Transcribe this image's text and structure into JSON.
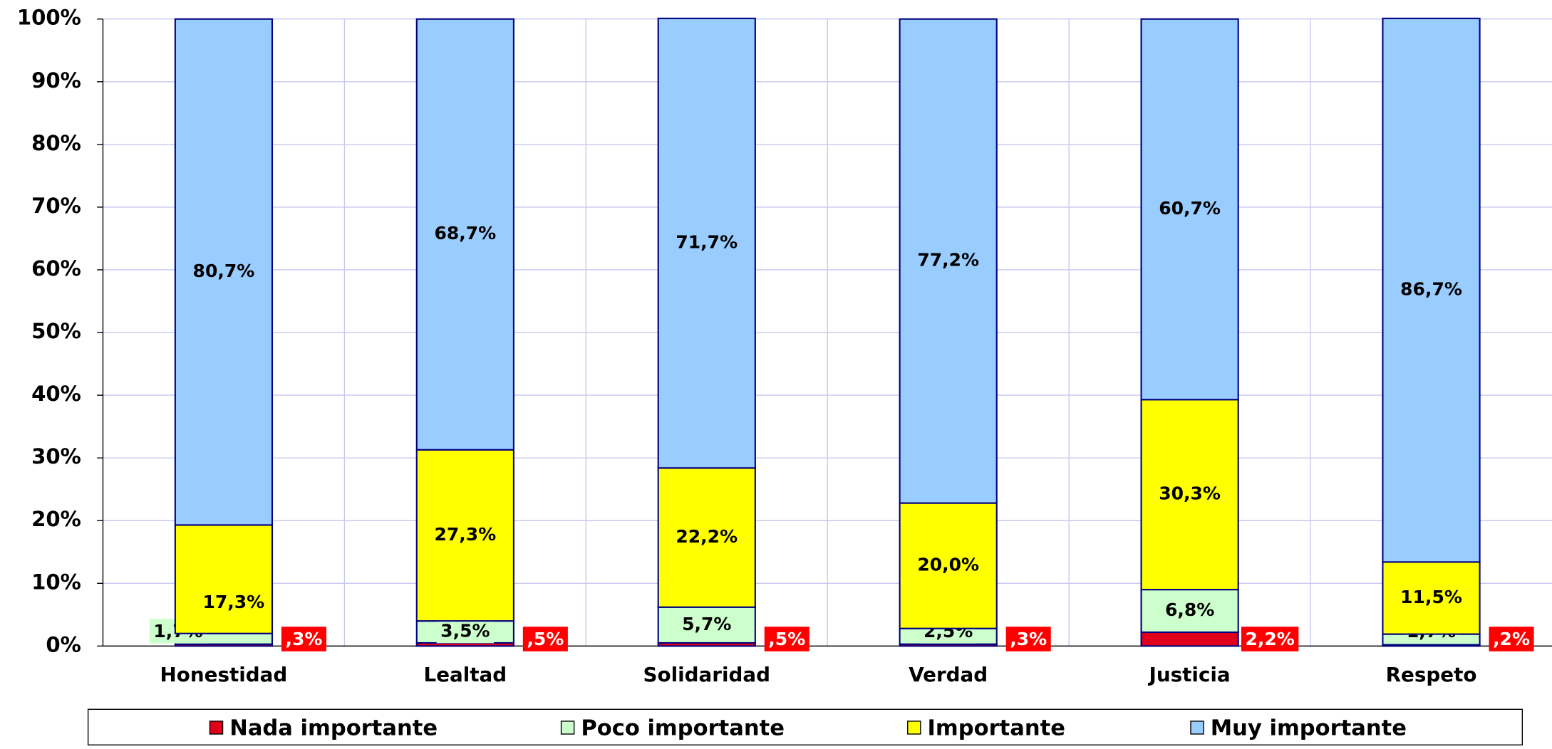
{
  "chart_data": {
    "type": "stacked_bar",
    "categories": [
      "Honestidad",
      "Lealtad",
      "Solidaridad",
      "Verdad",
      "Justicia",
      "Respeto"
    ],
    "series": [
      {
        "name": "Nada importante",
        "color": "#e0001b",
        "values": [
          0.3,
          0.5,
          0.5,
          0.3,
          2.2,
          0.2
        ],
        "value_labels": [
          ",3%",
          ",5%",
          ",5%",
          ",3%",
          "2,2%",
          ",2%"
        ]
      },
      {
        "name": "Poco importante",
        "color": "#ccffcc",
        "values": [
          1.7,
          3.5,
          5.7,
          2.5,
          6.8,
          1.7
        ],
        "value_labels": [
          "1,7%",
          "3,5%",
          "5,7%",
          "2,5%",
          "6,8%",
          "1,7%"
        ]
      },
      {
        "name": "Importante",
        "color": "#ffff00",
        "values": [
          17.3,
          27.3,
          22.2,
          20.0,
          30.3,
          11.5
        ],
        "value_labels": [
          "17,3%",
          "27,3%",
          "22,2%",
          "20,0%",
          "30,3%",
          "11,5%"
        ]
      },
      {
        "name": "Muy importante",
        "color": "#99ccff",
        "values": [
          80.7,
          68.7,
          71.7,
          77.2,
          60.7,
          86.7
        ],
        "value_labels": [
          "80,7%",
          "68,7%",
          "71,7%",
          "77,2%",
          "60,7%",
          "86,7%"
        ]
      }
    ],
    "ylim": [
      0,
      100
    ],
    "yticks": [
      {
        "value": 0,
        "label": "0%"
      },
      {
        "value": 10,
        "label": "10%"
      },
      {
        "value": 20,
        "label": "20%"
      },
      {
        "value": 30,
        "label": "30%"
      },
      {
        "value": 40,
        "label": "40%"
      },
      {
        "value": 50,
        "label": "50%"
      },
      {
        "value": 60,
        "label": "60%"
      },
      {
        "value": 70,
        "label": "70%"
      },
      {
        "value": 80,
        "label": "80%"
      },
      {
        "value": 90,
        "label": "90%"
      },
      {
        "value": 100,
        "label": "100%"
      }
    ],
    "grid": true,
    "legend": "bottom"
  }
}
